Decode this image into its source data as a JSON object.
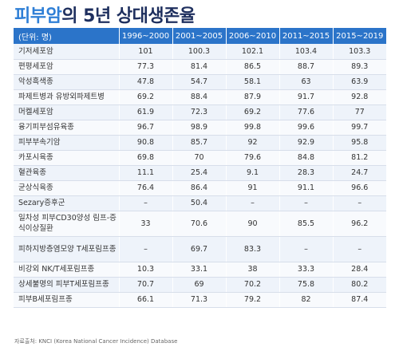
{
  "title": {
    "accent": "피부암",
    "rest": "의 5년 상대생존율"
  },
  "table": {
    "headers": [
      "(단위: 명)",
      "1996~2000",
      "2001~2005",
      "2006~2010",
      "2011~2015",
      "2015~2019"
    ],
    "rows": [
      {
        "label": "기저세포암",
        "values": [
          "101",
          "100.3",
          "102.1",
          "103.4",
          "103.3"
        ]
      },
      {
        "label": "편평세포암",
        "values": [
          "77.3",
          "81.4",
          "86.5",
          "88.7",
          "89.3"
        ]
      },
      {
        "label": "악성흑색종",
        "values": [
          "47.8",
          "54.7",
          "58.1",
          "63",
          "63.9"
        ]
      },
      {
        "label": "파제트병과 유방외파제트병",
        "values": [
          "69.2",
          "88.4",
          "87.9",
          "91.7",
          "92.8"
        ]
      },
      {
        "label": "머켈세포암",
        "values": [
          "61.9",
          "72.3",
          "69.2",
          "77.6",
          "77"
        ]
      },
      {
        "label": "융기피부섬유육종",
        "values": [
          "96.7",
          "98.9",
          "99.8",
          "99.6",
          "99.7"
        ]
      },
      {
        "label": "피부부속기암",
        "values": [
          "90.8",
          "85.7",
          "92",
          "92.9",
          "95.8"
        ]
      },
      {
        "label": "카포시육종",
        "values": [
          "69.8",
          "70",
          "79.6",
          "84.8",
          "81.2"
        ]
      },
      {
        "label": "혈관육종",
        "values": [
          "11.1",
          "25.4",
          "9.1",
          "28.3",
          "24.7"
        ]
      },
      {
        "label": "균상식육종",
        "values": [
          "76.4",
          "86.4",
          "91",
          "91.1",
          "96.6"
        ]
      },
      {
        "label": "Sezary증후군",
        "values": [
          "–",
          "50.4",
          "–",
          "–",
          "–"
        ]
      },
      {
        "label": "일차성 피부CD30양성 림프-증식이상질환",
        "values": [
          "33",
          "70.6",
          "90",
          "85.5",
          "96.2"
        ]
      },
      {
        "label": "피하지방층염모양 T세포림프종",
        "values": [
          "–",
          "69.7",
          "83.3",
          "–",
          "–"
        ]
      },
      {
        "label": "비강외 NK/T세포림프종",
        "values": [
          "10.3",
          "33.1",
          "38",
          "33.3",
          "28.4"
        ]
      },
      {
        "label": "상세불명의 피부T세포림프종",
        "values": [
          "70.7",
          "69",
          "70.2",
          "75.8",
          "80.2"
        ]
      },
      {
        "label": "피부B세포림프종",
        "values": [
          "66.1",
          "71.3",
          "79.2",
          "82",
          "87.4"
        ]
      }
    ]
  },
  "footnote": "자료출처: KNCI (Korea National Cancer Incidence) Database"
}
